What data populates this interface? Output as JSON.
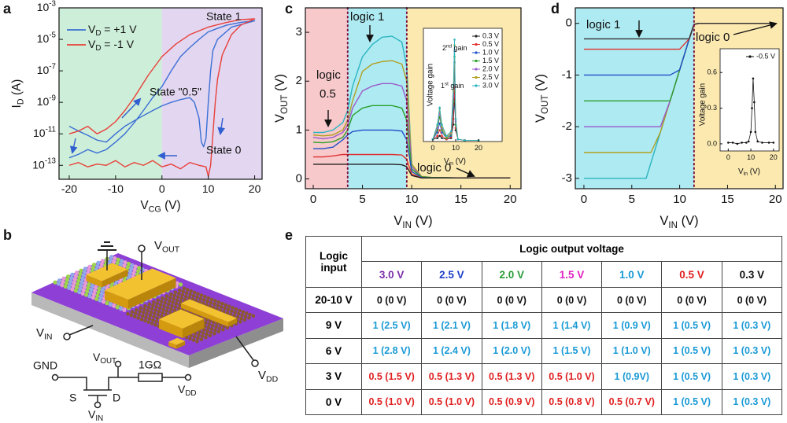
{
  "panels": [
    "a",
    "b",
    "c",
    "d",
    "e"
  ],
  "chart_data": [
    {
      "type": "line",
      "xlabel": "V_{CG} (V)",
      "ylabel": "I_{D} (A)",
      "log": true,
      "xlim": [
        -22.2,
        21.6
      ],
      "ylim": [
        1.3e-14,
        0.001
      ],
      "xticks": [
        -20,
        -10,
        0,
        10,
        20
      ],
      "yticks": [
        {
          "value": 1e-13,
          "label": "10^{-13}"
        },
        {
          "value": 1e-11,
          "label": "10^{-11}"
        },
        {
          "value": 1e-09,
          "label": "10^{-9}"
        },
        {
          "value": 1e-07,
          "label": "10^{-7}"
        },
        {
          "value": 1e-05,
          "label": "10^{-5}"
        },
        {
          "value": 0.001,
          "label": "10^{-3}"
        }
      ],
      "regions": [
        {
          "to": 0,
          "color": "#cdeed8"
        },
        {
          "from": 0,
          "color": "#e2d6f0"
        }
      ],
      "legend": "upper left",
      "annotations": [
        "State 1",
        "State \"0.5\"",
        "State 0"
      ],
      "series": [
        {
          "name": "V_{D} = +1 V",
          "color": "#3b6fd6",
          "x": [
            -20,
            -18,
            -16,
            -14,
            -12,
            -10,
            -8,
            -5,
            -2,
            0,
            2,
            4,
            6,
            7,
            8,
            8.5,
            9,
            9.5,
            10,
            10.5,
            11,
            12,
            15,
            20,
            17,
            14,
            12,
            10,
            8,
            6,
            4,
            2,
            0,
            -2,
            -4,
            -6,
            -8,
            -10,
            -12,
            -14,
            -16,
            -18,
            -20
          ],
          "values": [
            3e-11,
            1.5e-11,
            8e-12,
            4e-12,
            3e-12,
            1e-11,
            3e-11,
            1e-10,
            3e-10,
            6e-10,
            1e-09,
            1.5e-09,
            2e-09,
            1e-09,
            1e-10,
            3e-12,
            1.5e-12,
            5e-12,
            1e-09,
            1e-07,
            2e-06,
            1e-05,
            6e-05,
            0.00015,
            0.00012,
            8e-05,
            5e-05,
            3e-05,
            1e-05,
            3e-06,
            8e-07,
            1e-07,
            1e-08,
            2e-09,
            3e-10,
            5e-11,
            1e-11,
            3e-12,
            1e-12,
            6e-13,
            1e-12,
            5e-13,
            3e-13
          ]
        },
        {
          "name": "V_{D} = -1 V",
          "color": "#e8403a",
          "x": [
            -20,
            -18,
            -16,
            -14,
            -12,
            -10,
            -8,
            -6,
            -4,
            -2,
            0,
            2,
            4,
            6,
            8,
            9.5,
            10,
            10.5,
            11,
            11.5,
            12,
            13,
            15,
            17,
            20,
            17,
            14,
            10,
            6,
            3,
            0,
            -3,
            -6,
            -8,
            -10,
            -12,
            -14,
            -16,
            -18,
            -20
          ],
          "values": [
            1e-13,
            1.5e-13,
            8e-14,
            1.2e-13,
            1e-13,
            2e-13,
            8e-14,
            1.5e-13,
            1e-13,
            2e-13,
            8e-14,
            1.2e-13,
            6e-14,
            1.5e-13,
            1e-13,
            8e-14,
            2e-14,
            1e-13,
            1e-11,
            1e-09,
            3e-08,
            1e-06,
            2e-05,
            8e-05,
            0.0002,
            0.00018,
            0.00012,
            6e-05,
            2e-05,
            5e-06,
            8e-07,
            5e-08,
            2e-09,
            3e-10,
            6e-11,
            2e-11,
            1e-11,
            3e-11,
            1.5e-11,
            1e-11
          ]
        }
      ]
    },
    {
      "type": "line",
      "xlabel": "V_{IN} (V)",
      "ylabel": "V_{OUT} (V)",
      "xlim": [
        -0.8,
        21.1
      ],
      "ylim": [
        -0.2,
        3.5
      ],
      "xticks": [
        0,
        5,
        10,
        15,
        20
      ],
      "yticks": [
        0,
        1,
        2,
        3
      ],
      "regions": [
        {
          "to": 3.5,
          "color": "#f7c9cb"
        },
        {
          "from": 3.5,
          "to": 9.5,
          "color": "#aeeaf2"
        },
        {
          "from": 9.5,
          "color": "#fbe9b0"
        }
      ],
      "dividers": true,
      "annotations": [
        "logic 1",
        "logic",
        "0.5",
        "logic 0"
      ],
      "x": [
        0,
        1,
        2,
        3,
        3.5,
        4,
        5,
        6,
        7,
        8,
        9,
        9.5,
        10,
        11,
        12,
        15,
        20
      ],
      "series": [
        {
          "color": "#2bb5c0",
          "values": [
            0.95,
            0.95,
            1.0,
            1.15,
            1.4,
            1.9,
            2.5,
            2.75,
            2.9,
            2.92,
            2.8,
            2.3,
            0.3,
            0.05,
            0.03,
            0.02,
            0.02
          ]
        },
        {
          "color": "#b0a020",
          "values": [
            0.9,
            0.88,
            0.9,
            1.0,
            1.2,
            1.6,
            2.2,
            2.35,
            2.4,
            2.42,
            2.35,
            2.0,
            0.3,
            0.05,
            0.03,
            0.02,
            0.02
          ]
        },
        {
          "color": "#9b59c9",
          "values": [
            0.85,
            0.82,
            0.85,
            0.95,
            1.1,
            1.45,
            1.8,
            1.9,
            1.95,
            1.95,
            1.9,
            1.6,
            0.25,
            0.04,
            0.03,
            0.02,
            0.02
          ]
        },
        {
          "color": "#2ca02c",
          "values": [
            0.75,
            0.74,
            0.76,
            0.85,
            1.0,
            1.3,
            1.45,
            1.5,
            1.5,
            1.5,
            1.45,
            1.2,
            0.2,
            0.04,
            0.03,
            0.02,
            0.02
          ]
        },
        {
          "color": "#1f50c8",
          "values": [
            0.62,
            0.62,
            0.65,
            0.8,
            0.9,
            0.97,
            1.0,
            1.0,
            1.0,
            1.0,
            0.98,
            0.8,
            0.15,
            0.03,
            0.02,
            0.02,
            0.02
          ]
        },
        {
          "color": "#e03030",
          "values": [
            0.45,
            0.45,
            0.47,
            0.5,
            0.5,
            0.5,
            0.5,
            0.5,
            0.5,
            0.5,
            0.49,
            0.4,
            0.1,
            0.02,
            0.02,
            0.02,
            0.02
          ]
        },
        {
          "color": "#222222",
          "values": [
            0.3,
            0.3,
            0.3,
            0.3,
            0.3,
            0.3,
            0.3,
            0.3,
            0.3,
            0.3,
            0.29,
            0.25,
            0.07,
            0.02,
            0.02,
            0.02,
            0.02
          ]
        }
      ]
    },
    {
      "type": "line",
      "xlabel": "V_{in} (V)",
      "ylabel": "Voltage gain",
      "xlim": [
        -4.1,
        30.3
      ],
      "ylim": [
        0,
        10
      ],
      "xticks": [
        0,
        10,
        20
      ],
      "legend": "upper right",
      "markers": true,
      "annotations": [
        "2^{nd} gain",
        "1^{st} gain"
      ],
      "x": [
        0,
        2,
        3,
        4,
        6,
        8,
        9,
        9.5,
        10,
        11,
        14,
        20
      ],
      "series": [
        {
          "name": "0.3 V",
          "color": "#222222",
          "values": [
            0.2,
            0.3,
            0.5,
            0.3,
            0.2,
            0.3,
            1.5,
            4,
            1,
            0.2,
            0.1,
            0.1
          ]
        },
        {
          "name": "0.5 V",
          "color": "#e03030",
          "values": [
            0.2,
            0.5,
            1.0,
            0.5,
            0.2,
            0.4,
            2,
            5,
            1.2,
            0.2,
            0.1,
            0.1
          ]
        },
        {
          "name": "1.0 V",
          "color": "#1f50c8",
          "values": [
            0.2,
            0.8,
            1.6,
            0.8,
            0.3,
            0.5,
            3,
            7,
            1.5,
            0.2,
            0.1,
            0.1
          ]
        },
        {
          "name": "1.5 V",
          "color": "#2ca02c",
          "values": [
            0.2,
            1.0,
            2.2,
            1.0,
            0.3,
            0.6,
            3.5,
            7.5,
            1.5,
            0.2,
            0.1,
            0.1
          ]
        },
        {
          "name": "2.0 V",
          "color": "#9b59c9",
          "values": [
            0.2,
            1.2,
            2.6,
            1.2,
            0.4,
            0.7,
            4,
            8,
            1.8,
            0.2,
            0.1,
            0.1
          ]
        },
        {
          "name": "2.5 V",
          "color": "#b0a020",
          "values": [
            0.2,
            1.4,
            2.9,
            1.3,
            0.4,
            0.8,
            4.5,
            8.5,
            2,
            0.2,
            0.1,
            0.1
          ]
        },
        {
          "name": "3.0 V",
          "color": "#2bb5c0",
          "values": [
            0.2,
            1.5,
            3.0,
            1.5,
            0.5,
            0.9,
            5,
            9,
            2,
            0.2,
            0.1,
            0.1
          ]
        }
      ]
    },
    {
      "type": "line",
      "xlabel": "V_{IN} (V)",
      "ylabel": "V_{OUT} (V)",
      "xlim": [
        -0.9,
        20.8
      ],
      "ylim": [
        -3.2,
        0.3
      ],
      "xticks": [
        0,
        5,
        10,
        15,
        20
      ],
      "yticks": [
        0,
        -1,
        -2,
        -3
      ],
      "regions": [
        {
          "to": 11.5,
          "color": "#aeeaf2"
        },
        {
          "from": 11.5,
          "color": "#fbe9b0"
        }
      ],
      "dividers": true,
      "annotations": [
        "logic 1",
        "logic 0"
      ],
      "x": [
        0,
        2,
        4,
        6,
        6.5,
        7,
        8,
        9,
        10,
        11,
        11.5,
        12,
        15,
        20
      ],
      "series": [
        {
          "color": "#2bb5c0",
          "values": [
            -3,
            -3,
            -3,
            -3,
            -3,
            -2.7,
            -2.1,
            -1.5,
            -0.9,
            -0.3,
            -0.02,
            0,
            0,
            0
          ]
        },
        {
          "color": "#b0a020",
          "values": [
            -2.5,
            -2.5,
            -2.5,
            -2.5,
            -2.5,
            -2.5,
            -2.1,
            -1.5,
            -0.9,
            -0.3,
            -0.02,
            0,
            0,
            0
          ]
        },
        {
          "color": "#9b59c9",
          "values": [
            -2,
            -2,
            -2,
            -2,
            -2,
            -2,
            -2,
            -1.5,
            -0.9,
            -0.3,
            -0.02,
            0,
            0,
            0
          ]
        },
        {
          "color": "#2ca02c",
          "values": [
            -1.5,
            -1.5,
            -1.5,
            -1.5,
            -1.5,
            -1.5,
            -1.5,
            -1.5,
            -0.9,
            -0.3,
            -0.02,
            0,
            0,
            0
          ]
        },
        {
          "color": "#1f50c8",
          "values": [
            -1,
            -1,
            -1,
            -1,
            -1,
            -1,
            -1,
            -1,
            -0.9,
            -0.3,
            -0.02,
            0,
            0,
            0
          ]
        },
        {
          "color": "#e03030",
          "values": [
            -0.5,
            -0.5,
            -0.5,
            -0.5,
            -0.5,
            -0.5,
            -0.5,
            -0.5,
            -0.5,
            -0.3,
            -0.02,
            0,
            0,
            0
          ]
        },
        {
          "color": "#333333",
          "values": [
            -0.3,
            -0.3,
            -0.3,
            -0.3,
            -0.3,
            -0.3,
            -0.3,
            -0.3,
            -0.3,
            -0.3,
            -0.02,
            0,
            0,
            0
          ]
        }
      ]
    },
    {
      "type": "line",
      "xlabel": "V_{in} (V)",
      "ylabel": "Voltage gain",
      "xlim": [
        -3.6,
        22.5
      ],
      "ylim": [
        -0.06,
        0.8
      ],
      "xticks": [
        0,
        10,
        20
      ],
      "yticks": [
        {
          "value": 0,
          "label": "0.0"
        },
        0.3,
        0.6
      ],
      "legend": "upper right",
      "markers": true,
      "series": [
        {
          "name": "-0.5 V",
          "color": "#111111",
          "x": [
            0,
            2,
            4,
            6,
            8,
            9,
            10,
            10.5,
            11,
            11.5,
            12,
            13,
            15,
            18,
            20
          ],
          "values": [
            0.01,
            0.01,
            0.0,
            0.01,
            0.01,
            0.02,
            0.1,
            0.3,
            0.55,
            0.35,
            0.1,
            0.02,
            0.01,
            0.01,
            0.01
          ]
        }
      ]
    }
  ],
  "diagram": {
    "device_labels": [
      "V_{OUT}",
      "V_{IN}",
      "V_{DD}"
    ],
    "circuit_labels": [
      "GND",
      "V_{OUT}",
      "1GΩ",
      "V_{DD}",
      "S",
      "D",
      "V_{IN}"
    ]
  },
  "table": {
    "corner": "Logic input",
    "title": "Logic output voltage",
    "columns": [
      "3.0 V",
      "2.5 V",
      "2.0 V",
      "1.5 V",
      "1.0 V",
      "0.5 V",
      "0.3 V"
    ],
    "column_colors": [
      "#7b2fa8",
      "#1f3fc8",
      "#2a9d3a",
      "#e020c0",
      "#1a9ad6",
      "#e02020",
      "#111111"
    ],
    "logic_colors": {
      "0": "#111111",
      "1": "#1a9ad6",
      "0.5": "#e02020"
    },
    "rows": [
      {
        "label": "20-10 V",
        "cells": [
          "0 (0 V)",
          "0 (0 V)",
          "0 (0 V)",
          "0 (0 V)",
          "0 (0 V)",
          "0 (0 V)",
          "0 (0 V)"
        ]
      },
      {
        "label": "9 V",
        "cells": [
          "1 (2.5 V)",
          "1 (2.1 V)",
          "1 (1.8 V)",
          "1 (1.4 V)",
          "1 (0.9 V)",
          "1 (0.5 V)",
          "1 (0.3 V)"
        ]
      },
      {
        "label": "6 V",
        "cells": [
          "1 (2.8 V)",
          "1 (2.4 V)",
          "1 (2.0 V)",
          "1 (1.5 V)",
          "1 (1.0 V)",
          "1 (0.5 V)",
          "1 (0.3 V)"
        ]
      },
      {
        "label": "3 V",
        "cells": [
          "0.5 (1.5 V)",
          "0.5 (1.3 V)",
          "0.5 (1.3 V)",
          "0.5 (1.0 V)",
          "1 (0.9V)",
          "1 (0.5 V)",
          "1 (0.3 V)"
        ]
      },
      {
        "label": "0 V",
        "cells": [
          "0.5 (1.0 V)",
          "0.5 (1.0 V)",
          "0.5 (0.9 V)",
          "0.5 (0.8 V)",
          "0.5 (0.7 V)",
          "1 (0.5 V)",
          "1 (0.3 V)"
        ]
      }
    ]
  }
}
